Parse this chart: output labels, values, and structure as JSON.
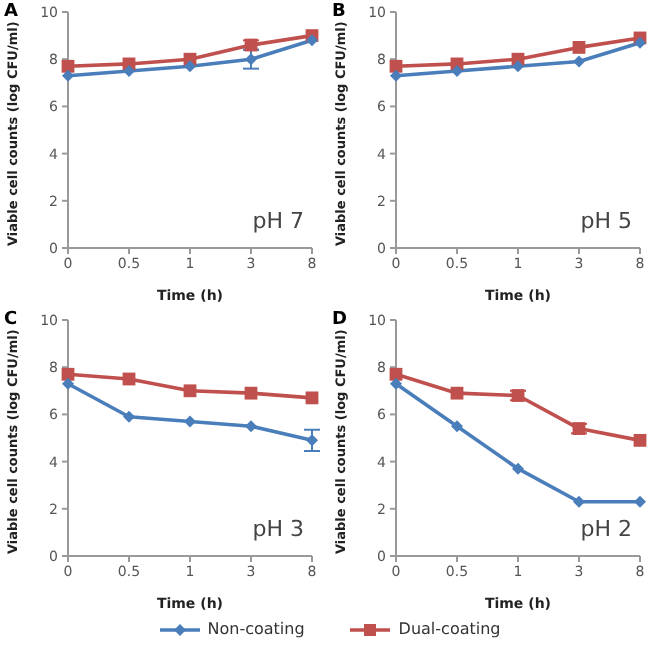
{
  "chart_data": [
    {
      "type": "line",
      "title": "A",
      "xlabel": "Time (h)",
      "ylabel": "Viable cell counts (log CFU/ml)",
      "annotations": [
        "pH 7"
      ],
      "categories": [
        "0",
        "0.5",
        "1",
        "3",
        "8"
      ],
      "ylim": [
        0,
        10
      ],
      "yticks": [
        0,
        2,
        4,
        6,
        8,
        10
      ],
      "grid": false,
      "legend": false,
      "series": [
        {
          "color": "#4a7ebb",
          "marker": "diamond",
          "values": [
            7.3,
            7.5,
            7.7,
            8.0,
            8.8
          ],
          "errors": [
            null,
            null,
            null,
            0.4,
            null
          ]
        },
        {
          "color": "#c0504d",
          "marker": "square",
          "values": [
            7.7,
            7.8,
            8.0,
            8.6,
            9.0
          ],
          "errors": [
            null,
            null,
            null,
            0.2,
            null
          ]
        }
      ]
    },
    {
      "type": "line",
      "title": "B",
      "xlabel": "Time (h)",
      "ylabel": "Viable cell counts (log CFU/ml)",
      "annotations": [
        "pH 5"
      ],
      "categories": [
        "0",
        "0.5",
        "1",
        "3",
        "8"
      ],
      "ylim": [
        0,
        10
      ],
      "yticks": [
        0,
        2,
        4,
        6,
        8,
        10
      ],
      "grid": false,
      "legend": false,
      "series": [
        {
          "color": "#4a7ebb",
          "marker": "diamond",
          "values": [
            7.3,
            7.5,
            7.7,
            7.9,
            8.7
          ]
        },
        {
          "color": "#c0504d",
          "marker": "square",
          "values": [
            7.7,
            7.8,
            8.0,
            8.5,
            8.9
          ]
        }
      ]
    },
    {
      "type": "line",
      "title": "C",
      "xlabel": "Time (h)",
      "ylabel": "Viable cell counts (log CFU/ml)",
      "annotations": [
        "pH 3"
      ],
      "categories": [
        "0",
        "0.5",
        "1",
        "3",
        "8"
      ],
      "ylim": [
        0,
        10
      ],
      "yticks": [
        0,
        2,
        4,
        6,
        8,
        10
      ],
      "grid": false,
      "legend": false,
      "series": [
        {
          "color": "#4a7ebb",
          "marker": "diamond",
          "values": [
            7.3,
            5.9,
            5.7,
            5.5,
            4.9
          ],
          "errors": [
            null,
            null,
            null,
            null,
            0.45
          ]
        },
        {
          "color": "#c0504d",
          "marker": "square",
          "values": [
            7.7,
            7.5,
            7.0,
            6.9,
            6.7
          ]
        }
      ]
    },
    {
      "type": "line",
      "title": "D",
      "xlabel": "Time (h)",
      "ylabel": "Viable cell counts (log CFU/ml)",
      "annotations": [
        "pH 2"
      ],
      "categories": [
        "0",
        "0.5",
        "1",
        "3",
        "8"
      ],
      "ylim": [
        0,
        10
      ],
      "yticks": [
        0,
        2,
        4,
        6,
        8,
        10
      ],
      "grid": false,
      "legend": "bottom",
      "series": [
        {
          "name": "Non-coating",
          "color": "#4a7ebb",
          "marker": "diamond",
          "values": [
            7.3,
            5.5,
            3.7,
            2.3,
            2.3
          ]
        },
        {
          "name": "Dual-coating",
          "color": "#c0504d",
          "marker": "square",
          "values": [
            7.7,
            6.9,
            6.8,
            5.4,
            4.9
          ],
          "errors": [
            null,
            null,
            0.2,
            0.2,
            null
          ]
        }
      ]
    }
  ]
}
